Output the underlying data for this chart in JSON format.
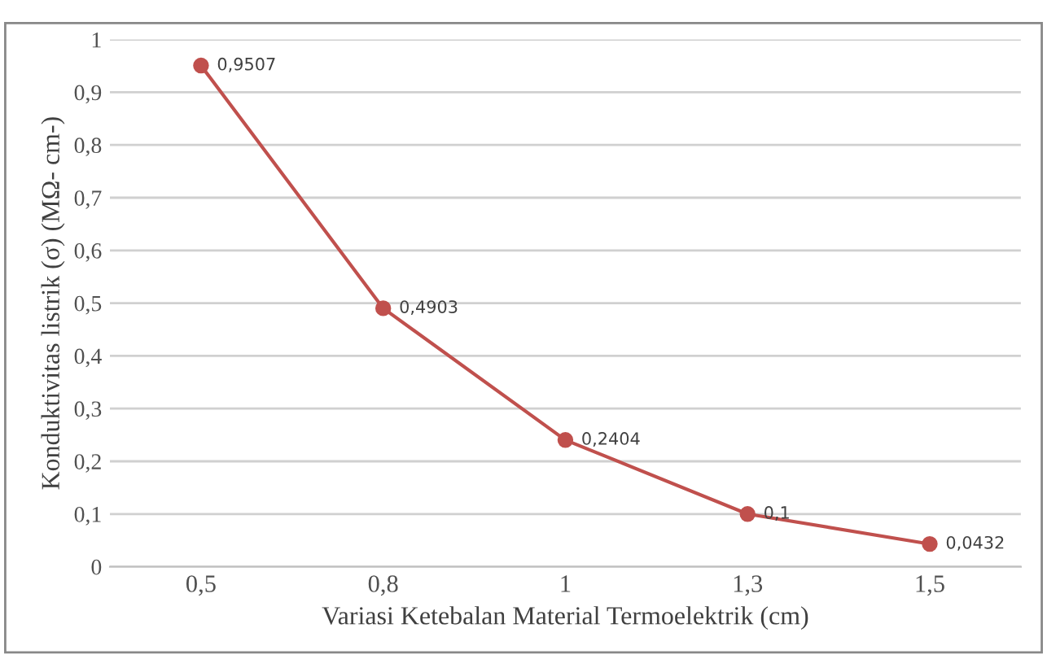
{
  "chart_data": {
    "type": "line",
    "xlabel": "Variasi Ketebalan Material Termoelektrik (cm)",
    "ylabel": "Konduktivitas listrik (σ) (MΩ- cm-)",
    "categories": [
      "0,5",
      "0,8",
      "1",
      "1,3",
      "1,5"
    ],
    "series": [
      {
        "color": "#c0504d",
        "values": [
          0.9507,
          0.4903,
          0.2404,
          0.1,
          0.0432
        ],
        "value_labels": [
          "0,9507",
          "0,4903",
          "0,2404",
          "0,1",
          "0,0432"
        ]
      }
    ],
    "ylim": [
      0,
      1
    ],
    "yticks": [
      0,
      {
        "value": 0.1,
        "label": "0,1"
      },
      {
        "value": 0.2,
        "label": "0,2"
      },
      {
        "value": 0.3,
        "label": "0,3"
      },
      {
        "value": 0.4,
        "label": "0,4"
      },
      {
        "value": 0.5,
        "label": "0,5"
      },
      {
        "value": 0.6,
        "label": "0,6"
      },
      {
        "value": 0.7,
        "label": "0,7"
      },
      {
        "value": 0.8,
        "label": "0,8"
      },
      {
        "value": 0.9,
        "label": "0,9"
      },
      1
    ],
    "grid": "y",
    "marker": "circle",
    "line_style": "solid",
    "legend": false
  }
}
